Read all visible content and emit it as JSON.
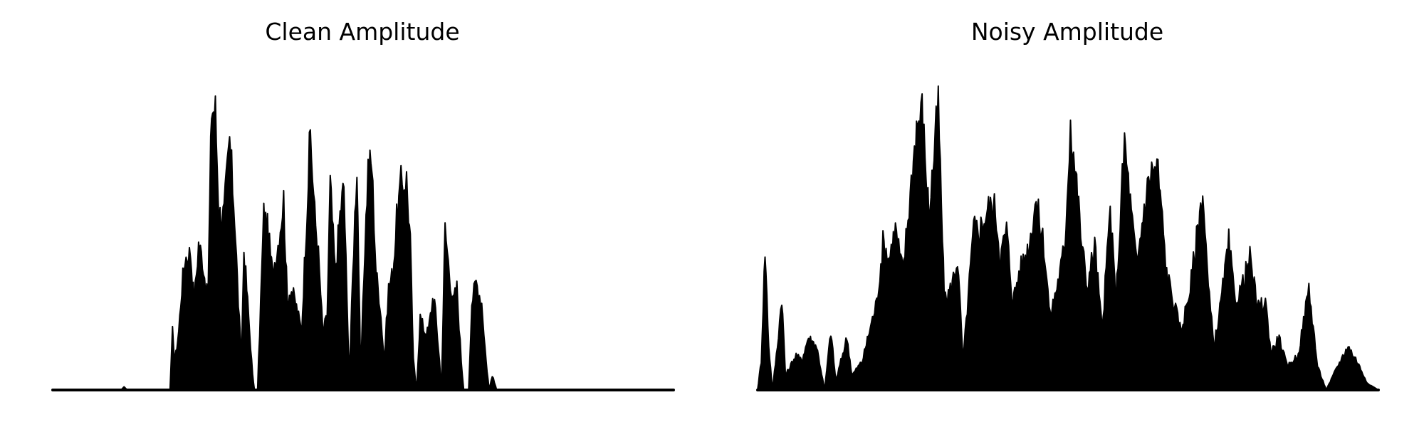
{
  "chart_data": [
    {
      "type": "area",
      "title": "Clean Amplitude",
      "axes_visible": false,
      "grid": false,
      "legend": "none",
      "color": "#000000",
      "x_range": [
        0,
        100
      ],
      "ylim": [
        0,
        1.0
      ],
      "envelope": [
        [
          0,
          0
        ],
        [
          11,
          0
        ],
        [
          11.5,
          0.01
        ],
        [
          12,
          0
        ],
        [
          18.9,
          0
        ],
        [
          19.3,
          0.2
        ],
        [
          19.7,
          0.1
        ],
        [
          20.3,
          0.2
        ],
        [
          20.8,
          0.35
        ],
        [
          21.3,
          0.45
        ],
        [
          22.2,
          0.47
        ],
        [
          22.8,
          0.3
        ],
        [
          23.5,
          0.5
        ],
        [
          24.1,
          0.45
        ],
        [
          25,
          0.3
        ],
        [
          25.6,
          0.97
        ],
        [
          26.2,
          0.95
        ],
        [
          26.8,
          0.6
        ],
        [
          27.6,
          0.6
        ],
        [
          28.5,
          0.85
        ],
        [
          29.3,
          0.6
        ],
        [
          29.9,
          0.3
        ],
        [
          30.4,
          0.1
        ],
        [
          30.8,
          0.48
        ],
        [
          31.4,
          0.3
        ],
        [
          32.2,
          0.05
        ],
        [
          32.5,
          0
        ],
        [
          33,
          0
        ],
        [
          34,
          0.6
        ],
        [
          34.6,
          0.55
        ],
        [
          35.4,
          0.4
        ],
        [
          36.3,
          0.5
        ],
        [
          37.2,
          0.65
        ],
        [
          37.8,
          0.3
        ],
        [
          38.3,
          0.35
        ],
        [
          39.1,
          0.3
        ],
        [
          40.1,
          0.2
        ],
        [
          40.7,
          0.5
        ],
        [
          41.5,
          0.88
        ],
        [
          42.2,
          0.6
        ],
        [
          42.8,
          0.46
        ],
        [
          43.5,
          0.2
        ],
        [
          44.2,
          0.25
        ],
        [
          44.7,
          0.7
        ],
        [
          45.5,
          0.4
        ],
        [
          46.3,
          0.6
        ],
        [
          46.9,
          0.7
        ],
        [
          47.4,
          0.3
        ],
        [
          47.8,
          0.05
        ],
        [
          48.5,
          0.5
        ],
        [
          49,
          0.78
        ],
        [
          49.6,
          0.05
        ],
        [
          50.3,
          0.5
        ],
        [
          50.8,
          0.76
        ],
        [
          51.4,
          0.77
        ],
        [
          52.1,
          0.4
        ],
        [
          52.7,
          0.3
        ],
        [
          53.4,
          0.1
        ],
        [
          54.1,
          0.35
        ],
        [
          54.8,
          0.4
        ],
        [
          55.4,
          0.58
        ],
        [
          56.1,
          0.7
        ],
        [
          57,
          0.72
        ],
        [
          57.6,
          0.5
        ],
        [
          58.1,
          0.1
        ],
        [
          58.6,
          0
        ],
        [
          59.2,
          0.25
        ],
        [
          59.9,
          0.2
        ],
        [
          60.5,
          0.2
        ],
        [
          61.2,
          0.31
        ],
        [
          61.5,
          0.3
        ],
        [
          62.3,
          0.1
        ],
        [
          62.6,
          0
        ],
        [
          63.2,
          0.55
        ],
        [
          63.9,
          0.4
        ],
        [
          64.5,
          0.3
        ],
        [
          65.1,
          0.35
        ],
        [
          65.8,
          0.1
        ],
        [
          66.2,
          0
        ],
        [
          67,
          0
        ],
        [
          67.5,
          0.3
        ],
        [
          68.2,
          0.37
        ],
        [
          69.1,
          0.3
        ],
        [
          69.8,
          0.1
        ],
        [
          70.3,
          0
        ],
        [
          70.8,
          0.05
        ],
        [
          71.5,
          0
        ],
        [
          100,
          0
        ]
      ]
    },
    {
      "type": "area",
      "title": "Noisy Amplitude",
      "axes_visible": false,
      "grid": false,
      "legend": "none",
      "color": "#000000",
      "x_range": [
        0,
        100
      ],
      "ylim": [
        0,
        1.0
      ],
      "envelope": [
        [
          0,
          0
        ],
        [
          0.6,
          0.1
        ],
        [
          1.2,
          0.48
        ],
        [
          1.8,
          0.15
        ],
        [
          2.4,
          0
        ],
        [
          3.2,
          0.15
        ],
        [
          3.9,
          0.32
        ],
        [
          4.5,
          0.05
        ],
        [
          6.2,
          0.12
        ],
        [
          7.1,
          0.1
        ],
        [
          8.2,
          0.18
        ],
        [
          9.5,
          0.15
        ],
        [
          10.8,
          0
        ],
        [
          11.8,
          0.2
        ],
        [
          12.6,
          0.03
        ],
        [
          14.4,
          0.18
        ],
        [
          15.2,
          0.05
        ],
        [
          16.9,
          0.1
        ],
        [
          18,
          0.2
        ],
        [
          19.2,
          0.3
        ],
        [
          20.2,
          0.5
        ],
        [
          21.2,
          0.45
        ],
        [
          22.2,
          0.55
        ],
        [
          23.4,
          0.4
        ],
        [
          25.6,
          0.9
        ],
        [
          26.5,
          0.95
        ],
        [
          27.6,
          0.6
        ],
        [
          29.1,
          0.97
        ],
        [
          30.1,
          0.3
        ],
        [
          31.2,
          0.35
        ],
        [
          32.2,
          0.45
        ],
        [
          33.1,
          0.1
        ],
        [
          34.8,
          0.55
        ],
        [
          35.8,
          0.55
        ],
        [
          37.2,
          0.62
        ],
        [
          38.3,
          0.62
        ],
        [
          39.1,
          0.45
        ],
        [
          40.1,
          0.55
        ],
        [
          41.1,
          0.3
        ],
        [
          42.1,
          0.4
        ],
        [
          43.8,
          0.5
        ],
        [
          44.7,
          0.65
        ],
        [
          46.1,
          0.5
        ],
        [
          47.1,
          0.25
        ],
        [
          48.7,
          0.4
        ],
        [
          49.5,
          0.5
        ],
        [
          50.4,
          0.92
        ],
        [
          51.4,
          0.7
        ],
        [
          52.2,
          0.5
        ],
        [
          53.1,
          0.35
        ],
        [
          54.3,
          0.5
        ],
        [
          55.5,
          0.2
        ],
        [
          56.8,
          0.62
        ],
        [
          57.7,
          0.3
        ],
        [
          59.1,
          0.85
        ],
        [
          60.2,
          0.6
        ],
        [
          61.1,
          0.42
        ],
        [
          62.1,
          0.6
        ],
        [
          63.3,
          0.75
        ],
        [
          64.5,
          0.75
        ],
        [
          65.9,
          0.4
        ],
        [
          66.8,
          0.32
        ],
        [
          68.2,
          0.2
        ],
        [
          69.7,
          0.35
        ],
        [
          71.7,
          0.68
        ],
        [
          72.6,
          0.35
        ],
        [
          73.5,
          0.15
        ],
        [
          74.3,
          0.25
        ],
        [
          75.9,
          0.5
        ],
        [
          76.9,
          0.3
        ],
        [
          78,
          0.35
        ],
        [
          79.3,
          0.45
        ],
        [
          80.5,
          0.28
        ],
        [
          81.8,
          0.3
        ],
        [
          82.7,
          0.13
        ],
        [
          84,
          0.18
        ],
        [
          85.3,
          0.08
        ],
        [
          87.1,
          0.12
        ],
        [
          88.8,
          0.35
        ],
        [
          90.2,
          0.08
        ],
        [
          91.6,
          0
        ],
        [
          93.4,
          0.08
        ],
        [
          95.1,
          0.15
        ],
        [
          96.5,
          0.1
        ],
        [
          98.3,
          0.02
        ],
        [
          100,
          0
        ]
      ]
    }
  ]
}
